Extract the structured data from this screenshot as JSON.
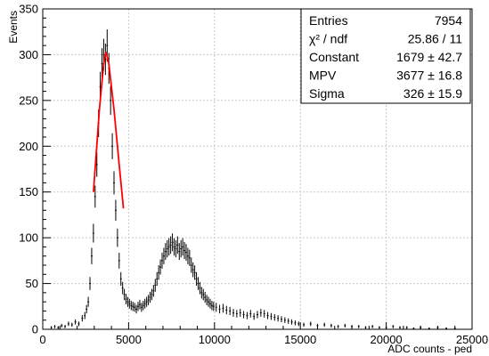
{
  "chart_data": {
    "type": "scatter",
    "title": "",
    "xlabel": "ADC counts - ped",
    "ylabel": "Events",
    "xlim": [
      0,
      25000
    ],
    "ylim": [
      0,
      350
    ],
    "grid": true,
    "x_ticks": [
      "0",
      "5000",
      "10000",
      "15000",
      "20000",
      "25000"
    ],
    "y_ticks": [
      "0",
      "50",
      "100",
      "150",
      "200",
      "250",
      "300",
      "350"
    ],
    "stats_box": {
      "placement": "top-right",
      "rows": [
        {
          "label": "Entries",
          "value": "7954"
        },
        {
          "label": "χ² / ndf",
          "value": "25.86 / 11"
        },
        {
          "label": "Constant",
          "value": "1679 ± 42.7"
        },
        {
          "label": "MPV",
          "value": "3677 ± 16.8"
        },
        {
          "label": "Sigma",
          "value": "326 ± 15.9"
        }
      ]
    },
    "fit": {
      "color": "#ff0000",
      "x": [
        2950,
        3300,
        3550,
        3677,
        3850,
        4150,
        4450,
        4700
      ],
      "y": [
        150,
        240,
        290,
        303,
        290,
        240,
        180,
        132
      ]
    },
    "series": [
      {
        "marker_color": "#000000",
        "bin_width": 100,
        "x": [
          500,
          700,
          900,
          1100,
          1300,
          1500,
          1700,
          1900,
          2100,
          2300,
          2450,
          2550,
          2650,
          2750,
          2850,
          2950,
          3050,
          3150,
          3250,
          3350,
          3450,
          3550,
          3650,
          3750,
          3850,
          3950,
          4050,
          4150,
          4250,
          4350,
          4450,
          4550,
          4650,
          4750,
          4850,
          4950,
          5050,
          5150,
          5250,
          5350,
          5450,
          5550,
          5650,
          5750,
          5850,
          5950,
          6050,
          6150,
          6250,
          6350,
          6450,
          6550,
          6650,
          6750,
          6850,
          6950,
          7050,
          7150,
          7250,
          7350,
          7450,
          7550,
          7650,
          7750,
          7850,
          7950,
          8050,
          8150,
          8250,
          8350,
          8450,
          8550,
          8650,
          8750,
          8850,
          8950,
          9050,
          9150,
          9250,
          9350,
          9450,
          9550,
          9650,
          9750,
          9850,
          9950,
          10100,
          10300,
          10500,
          10700,
          10900,
          11100,
          11300,
          11500,
          11700,
          11900,
          12100,
          12300,
          12500,
          12700,
          12900,
          13100,
          13300,
          13500,
          13700,
          13900,
          14100,
          14300,
          14500,
          14700,
          14900,
          15200,
          15600,
          16000,
          16400,
          16800,
          17200,
          17600,
          18000,
          18400,
          18800,
          19200,
          19600,
          20000,
          20400,
          20800,
          21200,
          21600,
          22000,
          22500,
          23000,
          23500,
          24000
        ],
        "y": [
          2,
          3,
          2,
          4,
          3,
          6,
          5,
          8,
          6,
          12,
          15,
          22,
          30,
          50,
          80,
          105,
          145,
          180,
          225,
          265,
          290,
          300,
          295,
          310,
          285,
          250,
          200,
          160,
          130,
          100,
          75,
          55,
          45,
          38,
          33,
          30,
          28,
          26,
          25,
          24,
          22,
          25,
          27,
          24,
          26,
          28,
          30,
          32,
          35,
          38,
          42,
          48,
          55,
          62,
          68,
          75,
          80,
          85,
          88,
          90,
          92,
          95,
          90,
          88,
          92,
          85,
          88,
          90,
          86,
          84,
          80,
          78,
          70,
          65,
          62,
          55,
          50,
          45,
          40,
          38,
          35,
          32,
          30,
          28,
          26,
          25,
          24,
          22,
          23,
          21,
          20,
          18,
          17,
          18,
          16,
          15,
          17,
          14,
          16,
          18,
          17,
          15,
          14,
          13,
          12,
          11,
          10,
          9,
          8,
          7,
          6,
          5,
          6,
          4,
          5,
          4,
          3,
          4,
          3,
          3,
          2,
          3,
          2,
          2,
          3,
          2,
          2,
          1,
          2,
          1,
          2,
          1,
          1
        ]
      }
    ]
  }
}
